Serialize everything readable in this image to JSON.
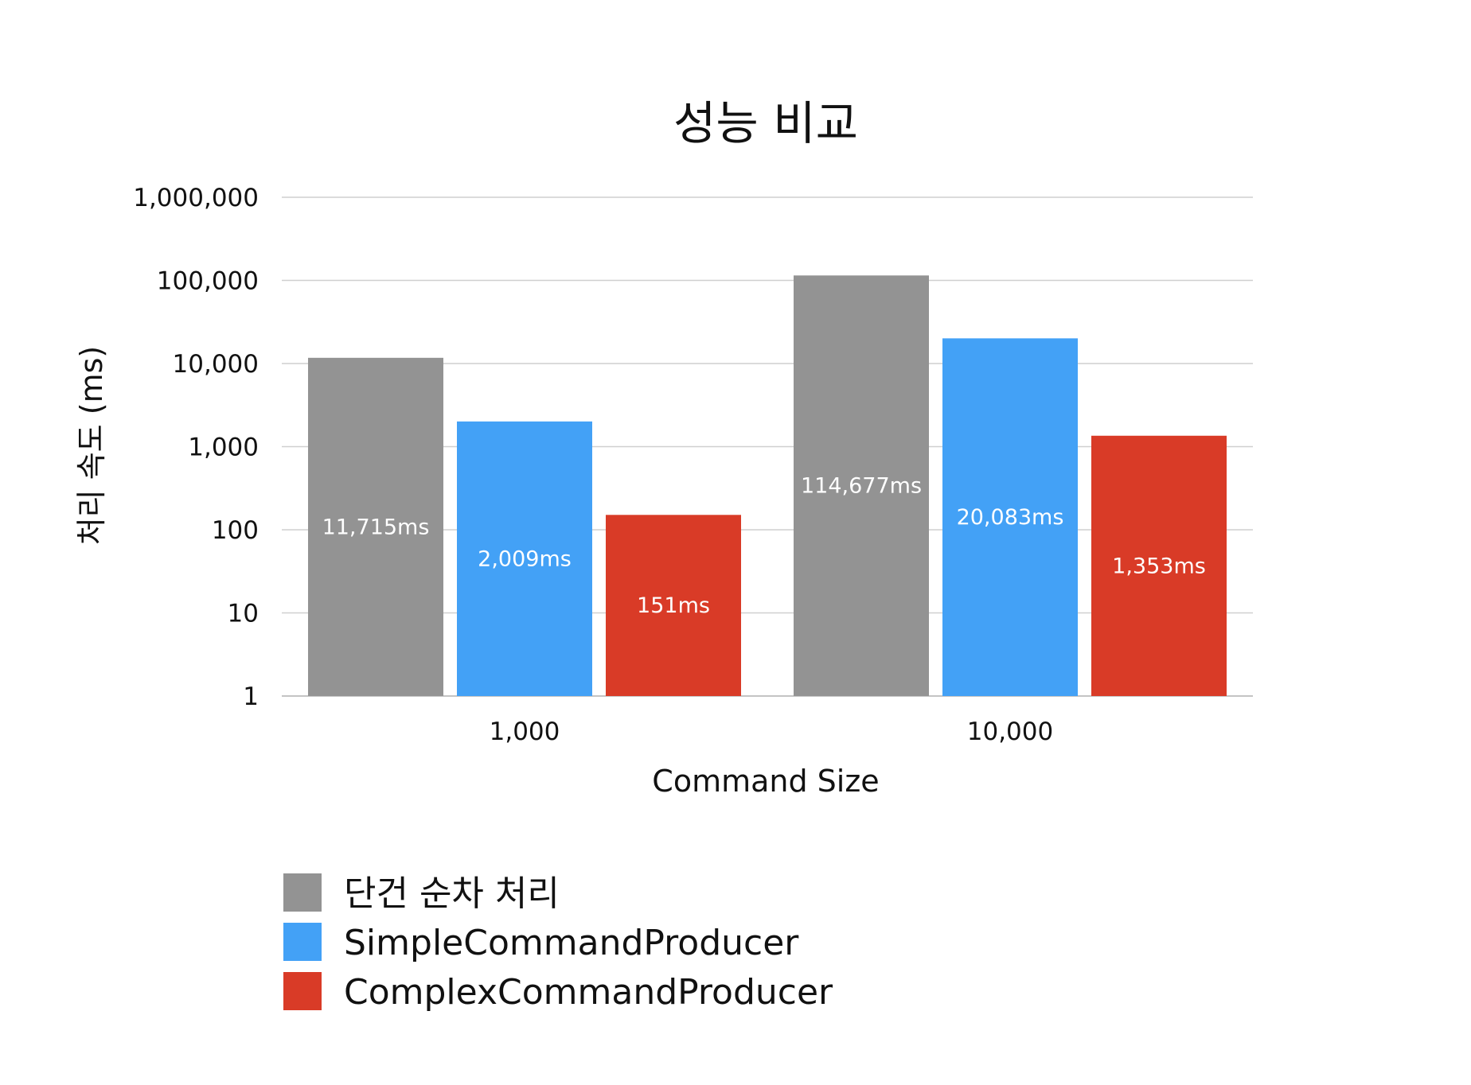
{
  "chart_data": {
    "type": "bar",
    "title": "성능 비교",
    "xlabel": "Command Size",
    "ylabel": "처리 속도 (ms)",
    "y_scale": "log",
    "ylim": [
      1,
      1000000
    ],
    "y_ticks": [
      {
        "value": 1,
        "label": "1"
      },
      {
        "value": 10,
        "label": "10"
      },
      {
        "value": 100,
        "label": "100"
      },
      {
        "value": 1000,
        "label": "1,000"
      },
      {
        "value": 10000,
        "label": "10,000"
      },
      {
        "value": 100000,
        "label": "100,000"
      },
      {
        "value": 1000000,
        "label": "1,000,000"
      }
    ],
    "categories": [
      "1,000",
      "10,000"
    ],
    "series": [
      {
        "name": "단건 순차 처리",
        "color": "#939393",
        "values": [
          11715,
          114677
        ],
        "labels": [
          "11,715ms",
          "114,677ms"
        ]
      },
      {
        "name": "SimpleCommandProducer",
        "color": "#43a1f6",
        "values": [
          2009,
          20083
        ],
        "labels": [
          "2,009ms",
          "20,083ms"
        ]
      },
      {
        "name": "ComplexCommandProducer",
        "color": "#d93b27",
        "values": [
          151,
          1353
        ],
        "labels": [
          "151ms",
          "1,353ms"
        ]
      }
    ],
    "grid": true,
    "legend_position": "bottom-left"
  }
}
